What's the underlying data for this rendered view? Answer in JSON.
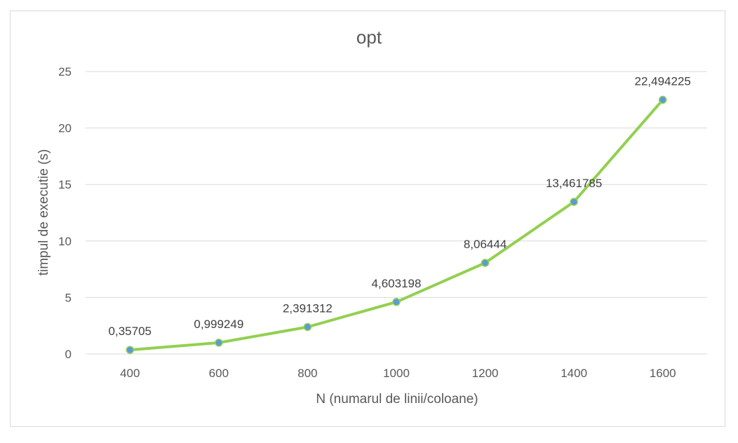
{
  "chart_data": {
    "type": "line",
    "title": "opt",
    "xlabel": "N (numarul de linii/coloane)",
    "ylabel": "timpul de executie (s)",
    "categories": [
      "400",
      "600",
      "800",
      "1000",
      "1200",
      "1400",
      "1600"
    ],
    "series": [
      {
        "values": [
          0.35705,
          0.999249,
          2.391312,
          4.603198,
          8.06444,
          13.461785,
          22.494225
        ],
        "data_labels": [
          "0,35705",
          "0,999249",
          "2,391312",
          "4,603198",
          "8,06444",
          "13,461785",
          "22,494225"
        ]
      }
    ],
    "ylim": [
      0,
      25
    ],
    "yticks": [
      0,
      5,
      10,
      15,
      20,
      25
    ],
    "grid": true,
    "legend": "none",
    "colors": {
      "line": "#92d050",
      "marker_fill": "#5b9bd5",
      "marker_edge": "#92d050",
      "gridline": "#d9d9d9",
      "text": "#595959"
    }
  }
}
